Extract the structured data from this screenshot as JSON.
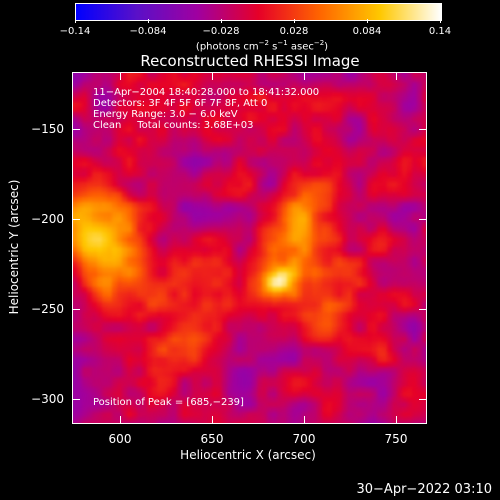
{
  "colorbar": {
    "tick_labels": [
      "−0.14",
      "−0.084",
      "−0.028",
      "0.028",
      "0.084",
      "0.14"
    ],
    "unit_prefix": "(photons cm",
    "unit_exp1": "−2",
    "unit_mid": " s",
    "unit_exp2": "−1",
    "unit_mid2": " asec",
    "unit_exp3": "−2",
    "unit_suffix": ")",
    "colors": [
      "#0000ff",
      "#5a10c8",
      "#a000a0",
      "#e60028",
      "#ff6400",
      "#ffc800",
      "#ffffff"
    ]
  },
  "title": "Reconstructed RHESSI Image",
  "annotation": {
    "line1": "11−Apr−2004 18:40:28.000 to 18:41:32.000",
    "line2": "Detectors: 3F 4F 5F 6F 7F 8F, Att 0",
    "line3": "Energy Range: 3.0 − 6.0 keV",
    "line4": "Clean     Total counts: 3.68E+03",
    "peak": "Position of Peak = [685,−239]"
  },
  "axes": {
    "xlabel": "Heliocentric X (arcsec)",
    "ylabel": "Heliocentric Y (arcsec)",
    "x_tick_labels": [
      "600",
      "650",
      "700",
      "750"
    ],
    "y_tick_labels": [
      "−150",
      "−200",
      "−250",
      "−300"
    ]
  },
  "footer": {
    "date": "30−Apr−2022 03:10"
  },
  "chart_data": {
    "type": "heatmap",
    "title": "Reconstructed RHESSI Image",
    "xlabel": "Heliocentric X (arcsec)",
    "ylabel": "Heliocentric Y (arcsec)",
    "xlim": [
      575,
      767
    ],
    "ylim": [
      -315,
      -127
    ],
    "x_ticks": [
      600,
      650,
      700,
      750
    ],
    "y_ticks": [
      -150,
      -200,
      -250,
      -300
    ],
    "colorbar_range": [
      -0.14,
      0.14
    ],
    "colorbar_ticks": [
      -0.14,
      -0.084,
      -0.028,
      0.028,
      0.084,
      0.14
    ],
    "sources": [
      {
        "x": 685,
        "y": -239,
        "value": 0.14
      },
      {
        "x": 587,
        "y": -205,
        "value": 0.1
      },
      {
        "x": 700,
        "y": -210,
        "value": 0.07
      },
      {
        "x": 715,
        "y": -255,
        "value": 0.06
      },
      {
        "x": 640,
        "y": -265,
        "value": 0.045
      },
      {
        "x": 600,
        "y": -232,
        "value": 0.06
      }
    ],
    "peak": [
      685,
      -239
    ]
  }
}
